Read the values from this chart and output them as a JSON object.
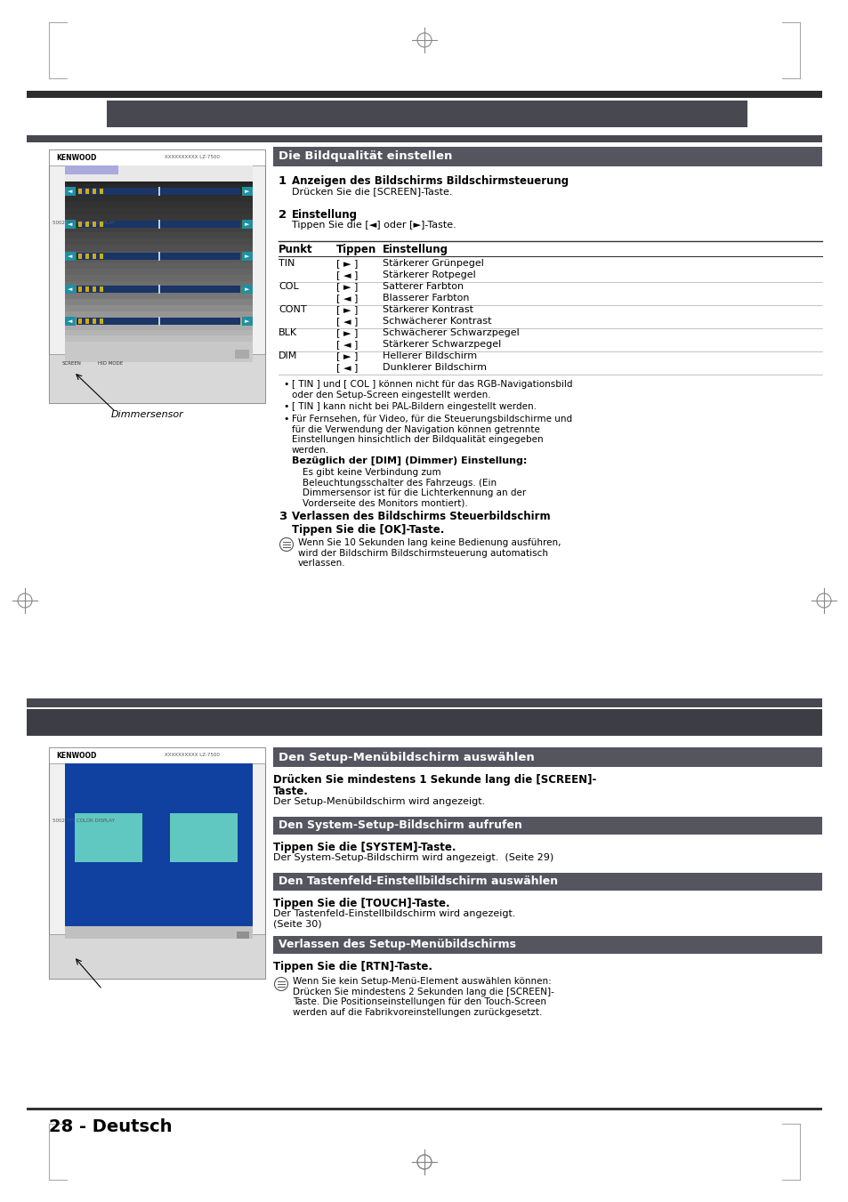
{
  "page_bg": "#ffffff",
  "bar1_color": "#3d3d3d",
  "bar2_color": "#4a4a4a",
  "sub_bar_color": "#555555",
  "sec_hdr_color": "#4d4d55",
  "section1_header": "Die Bildqualität einstellen",
  "step1_bold": "Anzeigen des Bildschirms Bildschirmsteuerung",
  "step1_normal": "Drücken Sie die [SCREEN]-Taste.",
  "step2_bold": "Einstellung",
  "step2_normal": "Tippen Sie die [◄] oder [►]-Taste.",
  "table_header": [
    "Punkt",
    "Tippen",
    "Einstellung"
  ],
  "table_rows": [
    [
      "TIN",
      "[►]",
      "Stärkerer Grünpegel"
    ],
    [
      "",
      "[◄]",
      "Stärkerer Rotpegel"
    ],
    [
      "COL",
      "[►]",
      "Satterer Farbton"
    ],
    [
      "",
      "[◄]",
      "Blasserer Farbton"
    ],
    [
      "CONT",
      "[►]",
      "Stärkerer Kontrast"
    ],
    [
      "",
      "[◄]",
      "Schwächerer Kontrast"
    ],
    [
      "BLK",
      "[►]",
      "Schwächerer Schwarzpegel"
    ],
    [
      "",
      "[◄]",
      "Stärkerer Schwarzpegel"
    ],
    [
      "DIM",
      "[►]",
      "Hellerer Bildschirm"
    ],
    [
      "",
      "[◄]",
      "Dunklerer Bildschirm"
    ]
  ],
  "bullet1": "[ TIN ] und [ COL ] können nicht für das RGB-Navigationsbild\noder den Setup-Screen eingestellt werden.",
  "bullet2": "[ TIN ] kann nicht bei PAL-Bildern eingestellt werden.",
  "bullet3": "Für Fernsehen, für Video, für die Steuerungsbildschirme und\nfür die Verwendung der Navigation können getrennte\nEinstellungen hinsichtlich der Bildqualität eingegeben\nwerden.",
  "dim_bold": "Bezüglich der [DIM] (Dimmer) Einstellung:",
  "dim_text": "Es gibt keine Verbindung zum\nBeleuchtungsschalter des Fahrzeugs. (Ein\nDimmersensor ist für die Lichterkennung an der\nVorderseite des Monitors montiert).",
  "step3_bold": "Verlassen des Bildschirms Steuerbildschirm",
  "step3_normal": "Tippen Sie die [OK]-Taste.",
  "step3_note": "Wenn Sie 10 Sekunden lang keine Bedienung ausführen,\nwird der Bildschirm Bildschirmsteuerung automatisch\nverlassen.",
  "caption1": "Dimmersensor",
  "section2_header": "Den Setup-Menübildschirm auswählen",
  "section2_text1_bold": "Drücken Sie mindestens 1 Sekunde lang die [SCREEN]-",
  "section2_text1b": "Taste.",
  "section2_text2": "Der Setup-Menübildschirm wird angezeigt.",
  "sub1_header": "Den System-Setup-Bildschirm aufrufen",
  "sub1_bold": "Tippen Sie die [SYSTEM]-Taste.",
  "sub1_normal": "Der System-Setup-Bildschirm wird angezeigt.  (Seite 29)",
  "sub2_header": "Den Tastenfeld-Einstellbildschirm auswählen",
  "sub2_bold": "Tippen Sie die [TOUCH]-Taste.",
  "sub2_normal": "Der Tastenfeld-Einstellbildschirm wird angezeigt.\n(Seite 30)",
  "sub3_header": "Verlassen des Setup-Menübildschirms",
  "sub3_bold": "Tippen Sie die [RTN]-Taste.",
  "sub3_note": "Wenn Sie kein Setup-Menü-Element auswählen können:\nDrücken Sie mindestens 2 Sekunden lang die [SCREEN]-\nTaste. Die Positionseinstellungen für den Touch-Screen\nwerden auf die Fabrikvoreinstellungen zurückgesetzt.",
  "footer": "28 - Deutsch"
}
